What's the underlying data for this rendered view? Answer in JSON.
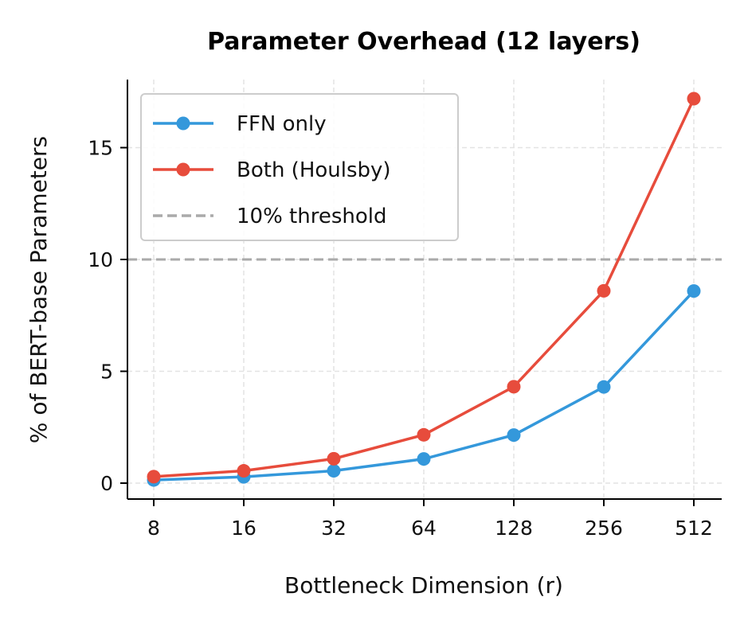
{
  "chart_data": {
    "type": "line",
    "title": "Parameter Overhead (12 layers)",
    "xlabel": "Bottleneck Dimension (r)",
    "ylabel": "% of BERT-base Parameters",
    "categories": [
      "8",
      "16",
      "32",
      "64",
      "128",
      "256",
      "512"
    ],
    "x_scale": "log2",
    "yticks": [
      "0",
      "5",
      "10",
      "15"
    ],
    "ylim": [
      -0.7,
      18.0
    ],
    "grid": true,
    "legend_placement": "upper-left",
    "series": [
      {
        "name": "FFN only",
        "color": "#3498db",
        "values": [
          0.14,
          0.28,
          0.55,
          1.08,
          2.15,
          4.3,
          8.59
        ]
      },
      {
        "name": "Both (Houlsby)",
        "color": "#e74c3c",
        "values": [
          0.29,
          0.55,
          1.09,
          2.16,
          4.31,
          8.6,
          17.19
        ]
      }
    ],
    "reference_line": {
      "name": "10% threshold",
      "value": 10,
      "color": "#aaaaaa",
      "style": "dashed"
    }
  }
}
